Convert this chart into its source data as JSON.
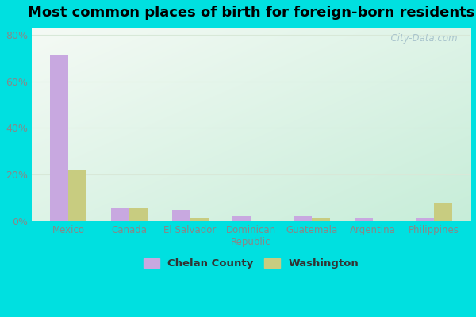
{
  "title": "Most common places of birth for foreign-born residents",
  "categories": [
    "Mexico",
    "Canada",
    "El Salvador",
    "Dominican\nRepublic",
    "Guatemala",
    "Argentina",
    "Philippines"
  ],
  "chelan_values": [
    71,
    6,
    5,
    2,
    2,
    1.5,
    1.5
  ],
  "washington_values": [
    22,
    6,
    1.5,
    0,
    1.5,
    0,
    8
  ],
  "chelan_color": "#c8a8e0",
  "washington_color": "#c8cc80",
  "background_color": "#00e0e0",
  "plot_bg_topleft": "#f5faf5",
  "plot_bg_bottomright": "#c8ecd8",
  "title_fontsize": 13,
  "legend_labels": [
    "Chelan County",
    "Washington"
  ],
  "ylim": [
    0,
    83
  ],
  "yticks": [
    0,
    20,
    40,
    60,
    80
  ],
  "ytick_labels": [
    "0%",
    "20%",
    "40%",
    "60%",
    "80%"
  ],
  "bar_width": 0.3,
  "watermark": "  City-Data.com",
  "grid_color": "#d8e8d8",
  "tick_color": "#888888",
  "figsize": [
    6.0,
    4.0
  ],
  "dpi": 100
}
